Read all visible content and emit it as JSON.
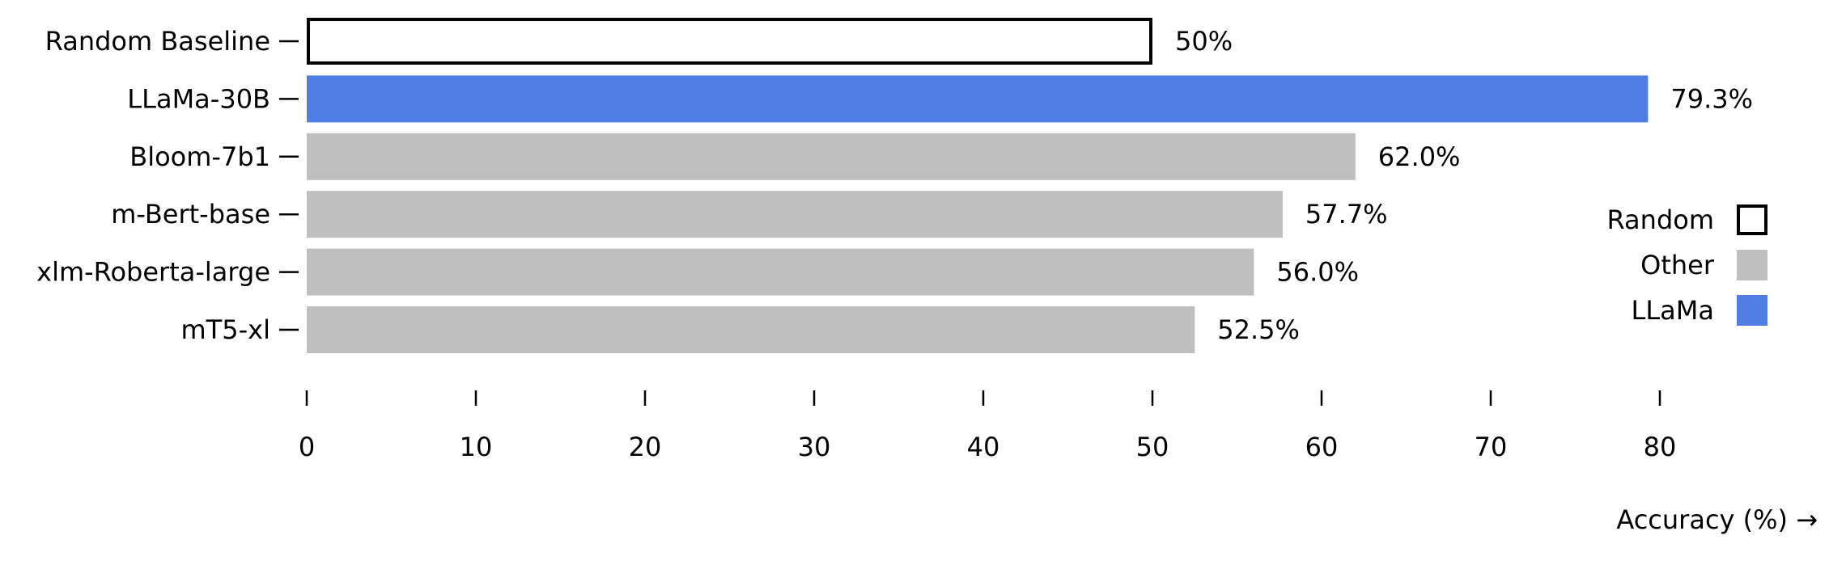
{
  "chart_data": {
    "type": "bar",
    "orientation": "horizontal",
    "categories": [
      "Random Baseline",
      "LLaMa-30B",
      "Bloom-7b1",
      "m-Bert-base",
      "xlm-Roberta-large",
      "mT5-xl"
    ],
    "values": [
      50,
      79.3,
      62.0,
      57.7,
      56.0,
      52.5
    ],
    "value_labels": [
      "50%",
      "79.3%",
      "62.0%",
      "57.7%",
      "56.0%",
      "52.5%"
    ],
    "groups": [
      "Random",
      "LLaMa",
      "Other",
      "Other",
      "Other",
      "Other"
    ],
    "xlabel": "Accuracy (%) →",
    "ylabel": "",
    "xlim": [
      0,
      80
    ],
    "xticks": [
      0,
      10,
      20,
      30,
      40,
      50,
      60,
      70,
      80
    ],
    "xtick_labels": [
      "0",
      "10",
      "20",
      "30",
      "40",
      "50",
      "60",
      "70",
      "80"
    ],
    "grid": false,
    "legend": {
      "placement": "right",
      "entries": [
        {
          "name": "Random",
          "style": "outline"
        },
        {
          "name": "Other",
          "style": "fill"
        },
        {
          "name": "LLaMa",
          "style": "fill"
        }
      ]
    },
    "colors": {
      "Random": "#ffffff",
      "Random_border": "#000000",
      "Other": "#bfbfbf",
      "LLaMa": "#4e7ee4"
    }
  }
}
